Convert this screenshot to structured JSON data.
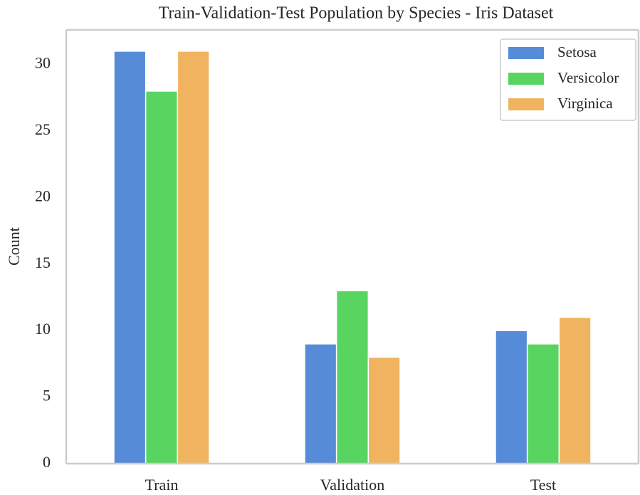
{
  "chart_data": {
    "type": "bar",
    "title": "Train-Validation-Test Population by Species - Iris Dataset",
    "y_label": "Count",
    "categories": [
      "Train",
      "Validation",
      "Test"
    ],
    "series": [
      {
        "name": "Setosa",
        "color": "#568bd8",
        "values": [
          31,
          9,
          10
        ]
      },
      {
        "name": "Versicolor",
        "color": "#57d560",
        "values": [
          28,
          13,
          9
        ]
      },
      {
        "name": "Virginica",
        "color": "#f0b461",
        "values": [
          31,
          8,
          11
        ]
      }
    ],
    "ylim": [
      0,
      32.6
    ],
    "yticks": [
      0,
      5,
      10,
      15,
      20,
      25,
      30
    ],
    "grid": false,
    "legend": "upper right"
  }
}
